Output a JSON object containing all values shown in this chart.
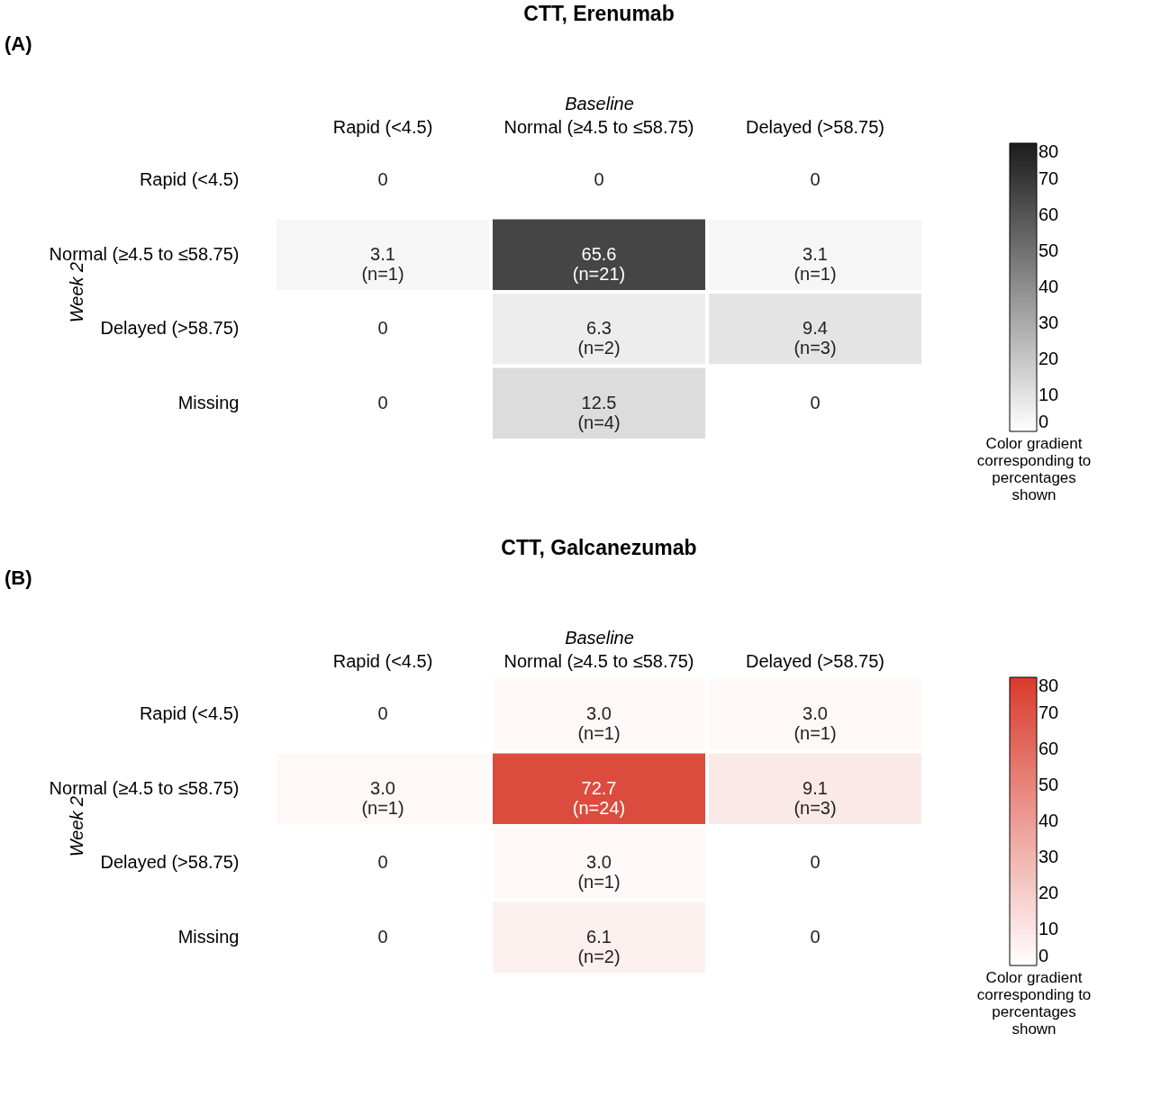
{
  "chart_data": [
    {
      "type": "heatmap",
      "title": "CTT, Erenumab",
      "xlabel": "Baseline",
      "ylabel": "Week 2",
      "clabel": "Color gradient corresponding to percentages shown",
      "annotations": [
        "(A)"
      ],
      "categories": [
        "Rapid (<4.5)",
        "Normal (≥4.5 to ≤58.75)",
        "Delayed (>58.75)"
      ],
      "y_categories": [
        "Rapid (<4.5)",
        "Normal (≥4.5 to ≤58.75)",
        "Delayed (>58.75)",
        "Missing"
      ],
      "cells": [
        [
          0,
          0,
          0
        ],
        [
          3.1,
          65.6,
          3.1
        ],
        [
          0,
          6.3,
          9.4
        ],
        [
          0,
          12.5,
          0
        ]
      ],
      "cell_labels": [
        [
          "0",
          "0",
          "0"
        ],
        [
          "3.1\n(n=1)",
          "65.6\n(n=21)",
          "3.1\n(n=1)"
        ],
        [
          "0",
          "6.3\n(n=2)",
          "9.4\n(n=3)"
        ],
        [
          "0",
          "12.5\n(n=4)",
          "0"
        ]
      ],
      "colors": [
        "#ffffff",
        "#1c1c1c"
      ],
      "clim": [
        0,
        80
      ],
      "cticks": [
        0,
        10,
        20,
        30,
        40,
        50,
        60,
        70,
        80
      ]
    },
    {
      "type": "heatmap",
      "title": "CTT, Galcanezumab",
      "xlabel": "Baseline",
      "ylabel": "Week 2",
      "clabel": "Color gradient corresponding to percentages shown",
      "annotations": [
        "(B)"
      ],
      "categories": [
        "Rapid (<4.5)",
        "Normal (≥4.5 to ≤58.75)",
        "Delayed (>58.75)"
      ],
      "y_categories": [
        "Rapid (<4.5)",
        "Normal (≥4.5 to ≤58.75)",
        "Delayed (>58.75)",
        "Missing"
      ],
      "cells": [
        [
          0,
          3.0,
          3.0
        ],
        [
          3.0,
          72.7,
          9.1
        ],
        [
          0,
          3.0,
          0
        ],
        [
          0,
          6.1,
          0
        ]
      ],
      "cell_labels": [
        [
          "0",
          "3.0\n(n=1)",
          "3.0\n(n=1)"
        ],
        [
          "3.0\n(n=1)",
          "72.7\n(n=24)",
          "9.1\n(n=3)"
        ],
        [
          "0",
          "3.0\n(n=1)",
          "0"
        ],
        [
          "0",
          "6.1\n(n=2)",
          "0"
        ]
      ],
      "colors": [
        "#ffffff",
        "#d93a2b"
      ],
      "clim": [
        0,
        80
      ],
      "cticks": [
        0,
        10,
        20,
        30,
        40,
        50,
        60,
        70,
        80
      ]
    }
  ]
}
